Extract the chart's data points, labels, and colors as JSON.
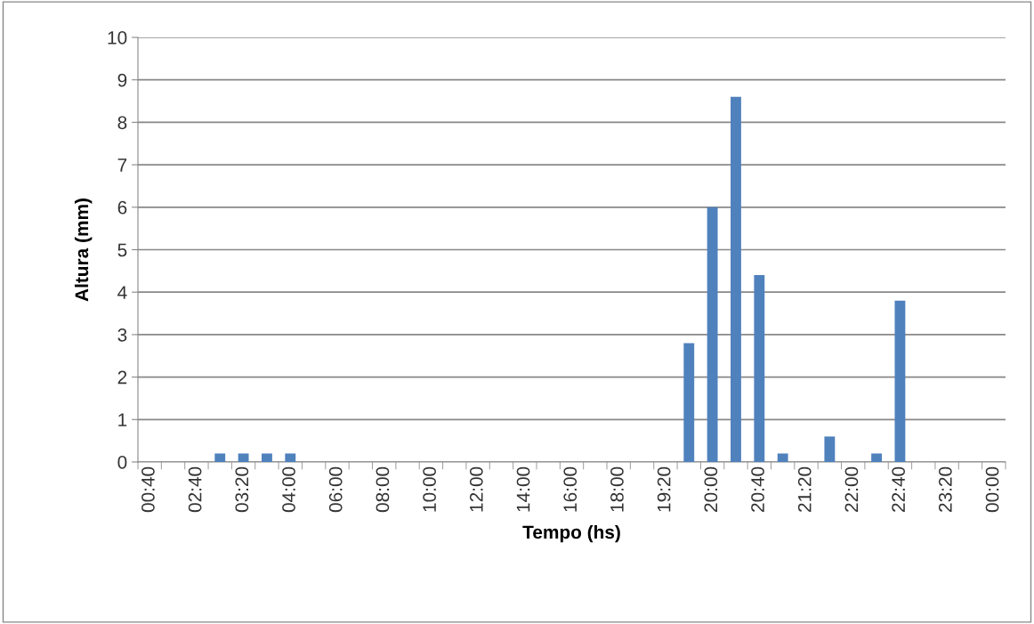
{
  "chart_data": {
    "type": "bar",
    "xlabel": "Tempo (hs)",
    "ylabel": "Altura (mm)",
    "categories": [
      "00:40",
      null,
      "02:40",
      null,
      "03:20",
      null,
      "04:00",
      null,
      "06:00",
      null,
      "08:00",
      null,
      "10:00",
      null,
      "12:00",
      null,
      "14:00",
      null,
      "16:00",
      null,
      "18:00",
      null,
      "19:20",
      null,
      "20:00",
      null,
      "20:40",
      null,
      "21:20",
      null,
      "22:00",
      null,
      "22:40",
      null,
      "23:20",
      null,
      "00:00"
    ],
    "values": [
      0,
      0,
      0,
      0.2,
      0.2,
      0.2,
      0.2,
      0,
      0,
      0,
      0,
      0,
      0,
      0,
      0,
      0,
      0,
      0,
      0,
      0,
      0,
      0,
      0,
      2.8,
      6.0,
      8.6,
      4.4,
      0.2,
      0,
      0.6,
      0,
      0.2,
      3.8,
      0,
      0,
      0,
      0
    ],
    "color": "#4f81bd",
    "ylim": [
      0,
      10
    ],
    "yticks": [
      0,
      1,
      2,
      3,
      4,
      5,
      6,
      7,
      8,
      9,
      10
    ],
    "grid": "y"
  }
}
